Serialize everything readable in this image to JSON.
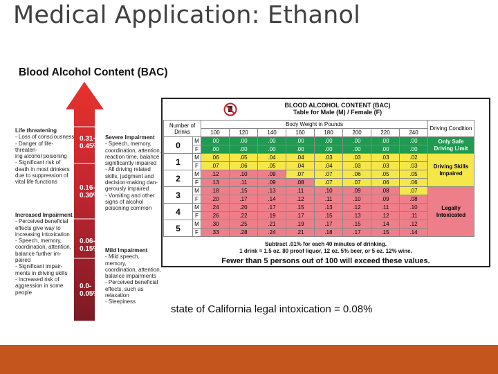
{
  "slide_title": "Medical Application: Ethanol",
  "bac_heading": "Blood Alcohol Content (BAC)",
  "arrow": {
    "ranges": [
      {
        "label_lines": [
          "0.31-",
          "0.45%"
        ]
      },
      {
        "label_lines": [
          "0.16-",
          "0.30%"
        ]
      },
      {
        "label_lines": [
          "0.06-",
          "0.15%"
        ]
      },
      {
        "label_lines": [
          "0.0-",
          "0.05%"
        ]
      }
    ],
    "left_blocks": [
      {
        "title": "Life threatening",
        "lines": [
          "- Loss of consciousness",
          "- Danger of life-threaten-",
          "ing alcohol poisoning",
          "- Significant risk of",
          "death in most drinkers",
          "due to suppression of",
          "vital life functions"
        ]
      },
      {
        "title": "Increased Impairment",
        "lines": [
          "- Perceived beneficial",
          "effects give way to",
          "increasing intoxication",
          "- Speech, memory,",
          "coordination, attention,",
          "balance further im-",
          "paired",
          "- Significant impair-",
          "ments in driving skills",
          "- Increased risk of",
          "aggression in some",
          "people"
        ]
      }
    ],
    "right_blocks": [
      {
        "title": "Severe Impairment",
        "lines": [
          "- Speech, memory,",
          "coordination, attention,",
          "reaction time, balance",
          "significantly impaired",
          "- All driving related",
          "skills, judgment and",
          "decision-making dan-",
          "gerously impaired",
          "- Vomiting and other",
          "signs of alcohol",
          "poisoning common"
        ]
      },
      {
        "title": "Mild Impairment",
        "lines": [
          "- Mild speech, memory,",
          "coordination, attention,",
          "balance impairments",
          "- Perceived beneficial",
          "effects, such as",
          "relaxation",
          "- Sleepiness"
        ]
      }
    ]
  },
  "table": {
    "title_line1": "BLOOD ALCOHOL CONTENT (BAC)",
    "title_line2": "Table for Male (M) / Female (F)",
    "header_drinks": "Number of Drinks",
    "header_weight": "Body Weight in Pounds",
    "header_condition": "Driving Condition",
    "weights": [
      "100",
      "120",
      "140",
      "160",
      "180",
      "200",
      "220",
      "240"
    ],
    "groups": [
      {
        "drinks": "0",
        "rows": [
          {
            "sex": "M",
            "values": [
              ".00",
              ".00",
              ".00",
              ".00",
              ".00",
              ".00",
              ".00",
              ".00"
            ],
            "colors": [
              "g",
              "g",
              "g",
              "g",
              "g",
              "g",
              "g",
              "g"
            ]
          },
          {
            "sex": "F",
            "values": [
              ".00",
              ".00",
              ".00",
              ".00",
              ".00",
              ".00",
              ".00",
              ".00"
            ],
            "colors": [
              "g",
              "g",
              "g",
              "g",
              "g",
              "g",
              "g",
              "g"
            ]
          }
        ]
      },
      {
        "drinks": "1",
        "rows": [
          {
            "sex": "M",
            "values": [
              ".06",
              ".05",
              ".04",
              ".04",
              ".03",
              ".03",
              ".03",
              ".02"
            ],
            "colors": [
              "y",
              "y",
              "y",
              "y",
              "y",
              "y",
              "y",
              "y"
            ]
          },
          {
            "sex": "F",
            "values": [
              ".07",
              ".06",
              ".05",
              ".04",
              ".04",
              ".03",
              ".03",
              ".03"
            ],
            "colors": [
              "y",
              "y",
              "y",
              "y",
              "y",
              "y",
              "y",
              "y"
            ]
          }
        ]
      },
      {
        "drinks": "2",
        "rows": [
          {
            "sex": "M",
            "values": [
              ".12",
              ".10",
              ".09",
              ".07",
              ".07",
              ".06",
              ".05",
              ".05"
            ],
            "colors": [
              "p",
              "p",
              "p",
              "y",
              "y",
              "y",
              "y",
              "y"
            ]
          },
          {
            "sex": "F",
            "values": [
              ".13",
              ".11",
              ".09",
              ".08",
              ".07",
              ".07",
              ".06",
              ".06"
            ],
            "colors": [
              "p",
              "p",
              "p",
              "p",
              "y",
              "y",
              "y",
              "y"
            ]
          }
        ]
      },
      {
        "drinks": "3",
        "rows": [
          {
            "sex": "M",
            "values": [
              ".18",
              ".15",
              ".13",
              ".11",
              ".10",
              ".09",
              ".08",
              ".07"
            ],
            "colors": [
              "p",
              "p",
              "p",
              "p",
              "p",
              "p",
              "p",
              "y"
            ]
          },
          {
            "sex": "F",
            "values": [
              ".20",
              ".17",
              ".14",
              ".12",
              ".11",
              ".10",
              ".09",
              ".08"
            ],
            "colors": [
              "p",
              "p",
              "p",
              "p",
              "p",
              "p",
              "p",
              "p"
            ]
          }
        ]
      },
      {
        "drinks": "4",
        "rows": [
          {
            "sex": "M",
            "values": [
              ".24",
              ".20",
              ".17",
              ".15",
              ".13",
              ".12",
              ".11",
              ".10"
            ],
            "colors": [
              "p",
              "p",
              "p",
              "p",
              "p",
              "p",
              "p",
              "p"
            ]
          },
          {
            "sex": "F",
            "values": [
              ".26",
              ".22",
              ".19",
              ".17",
              ".15",
              ".13",
              ".12",
              ".11"
            ],
            "colors": [
              "p",
              "p",
              "p",
              "p",
              "p",
              "p",
              "p",
              "p"
            ]
          }
        ]
      },
      {
        "drinks": "5",
        "rows": [
          {
            "sex": "M",
            "values": [
              ".30",
              ".25",
              ".21",
              ".19",
              ".17",
              ".15",
              ".14",
              ".12"
            ],
            "colors": [
              "p",
              "p",
              "p",
              "p",
              "p",
              "p",
              "p",
              "p"
            ]
          },
          {
            "sex": "F",
            "values": [
              ".33",
              ".28",
              ".24",
              ".21",
              ".18",
              ".17",
              ".15",
              ".14"
            ],
            "colors": [
              "p",
              "p",
              "p",
              "p",
              "p",
              "p",
              "p",
              "p"
            ]
          }
        ]
      }
    ],
    "conditions": [
      {
        "label": "Only Safe Driving Limit",
        "color": "g"
      },
      {
        "label": "Driving Skills Impaired",
        "color": "y"
      },
      {
        "label": "Legally Intoxicated",
        "color": "p"
      }
    ],
    "footer_line1": "Subtract .01% for each 40 minutes of drinking.",
    "footer_line2": "1 drink = 1.5 oz. 80 proof liquor, 12 oz. 5% beer, or 5 oz. 12% wine.",
    "footer_line3": "Fewer than 5 persons out of 100 will exceed these values."
  },
  "legal_note": "state of California legal intoxication = 0.08%",
  "colors": {
    "accent": "#c4551c",
    "green": "#1f9a50",
    "yellow": "#f5e74a",
    "pink": "#ee7f8a",
    "arrow_red": "#d7262b",
    "arrow_maroon": "#8a1c24"
  }
}
